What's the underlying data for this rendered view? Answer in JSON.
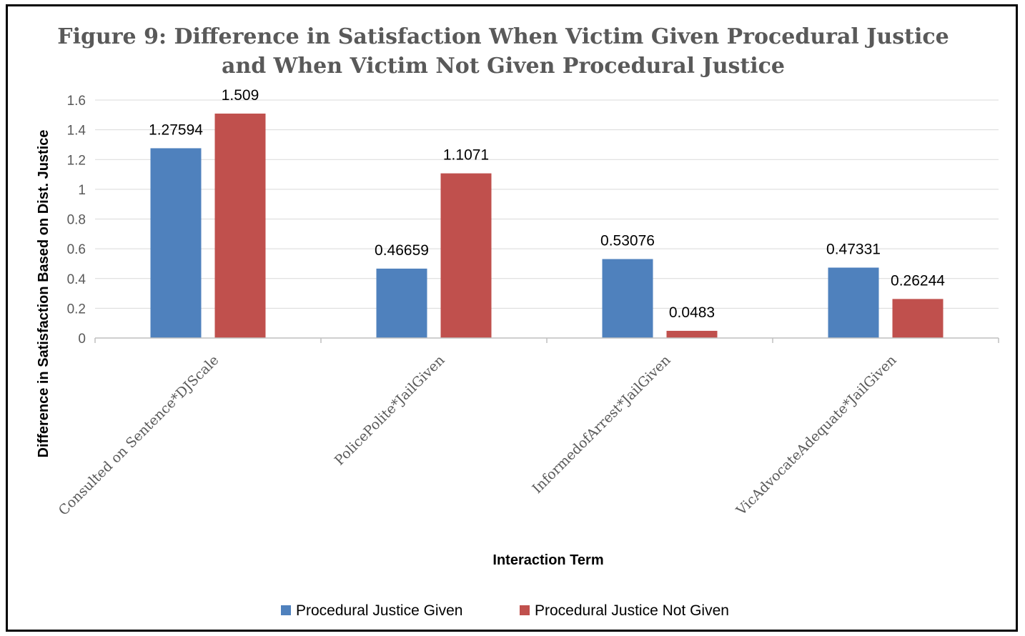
{
  "chart_data": {
    "type": "bar",
    "title": "Figure 9: Difference in Satisfaction When Victim Given Procedural Justice and When Victim Not Given Procedural Justice",
    "title_lines": [
      "Figure 9: Difference in Satisfaction When Victim Given Procedural Justice",
      "and When Victim Not Given Procedural Justice"
    ],
    "xlabel": "Interaction Term",
    "ylabel": "Difference in Satisfaction Based on Dist. Justice",
    "categories": [
      "Consulted on Sentence*DJScale",
      "PolicePolite*JailGiven",
      "InformedofArrest*JailGiven",
      "VicAdvocateAdequate*JailGiven"
    ],
    "series": [
      {
        "name": "Procedural Justice Given",
        "color": "#4F81BD",
        "values": [
          1.27594,
          0.46659,
          0.53076,
          0.47331
        ],
        "labels": [
          "1.27594",
          "0.46659",
          "0.53076",
          "0.47331"
        ]
      },
      {
        "name": "Procedural Justice Not Given",
        "color": "#C0504D",
        "values": [
          1.509,
          1.1071,
          0.0483,
          0.26244
        ],
        "labels": [
          "1.509",
          "1.1071",
          "0.0483",
          "0.26244"
        ]
      }
    ],
    "ylim": [
      0,
      1.6
    ],
    "yticks": [
      0,
      0.2,
      0.4,
      0.6,
      0.8,
      1,
      1.2,
      1.4,
      1.6
    ],
    "ytick_labels": [
      "0",
      "0.2",
      "0.4",
      "0.6",
      "0.8",
      "1",
      "1.2",
      "1.4",
      "1.6"
    ],
    "grid": true,
    "legend_position": "bottom",
    "frame_color": "#000000",
    "grid_color": "#D9D9D9",
    "axis_color": "#BFBFBF"
  }
}
